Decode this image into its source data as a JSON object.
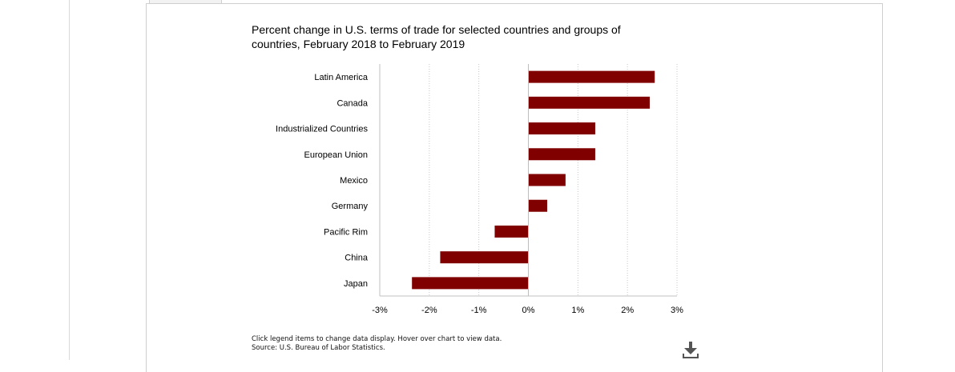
{
  "chart_data": {
    "type": "bar",
    "orientation": "horizontal",
    "title": "Percent change in U.S. terms of trade for selected countries and groups of countries, February 2018 to February 2019",
    "categories": [
      "Latin America",
      "Canada",
      "Industrialized Countries",
      "European Union",
      "Mexico",
      "Germany",
      "Pacific Rim",
      "China",
      "Japan"
    ],
    "values": [
      2.55,
      2.45,
      1.35,
      1.35,
      0.75,
      0.38,
      -0.68,
      -1.78,
      -2.35
    ],
    "xlim": [
      -3,
      3
    ],
    "xticks": [
      "-3%",
      "-2%",
      "-1%",
      "0%",
      "1%",
      "2%",
      "3%"
    ],
    "grid": "vertical-dotted",
    "bar_color": "#800000",
    "legend": "none"
  },
  "footer": {
    "instructions": "Click legend items to change data display. Hover over chart to view data.",
    "source": "Source: U.S. Bureau of Labor Statistics."
  },
  "icons": {
    "download": "download-icon"
  }
}
